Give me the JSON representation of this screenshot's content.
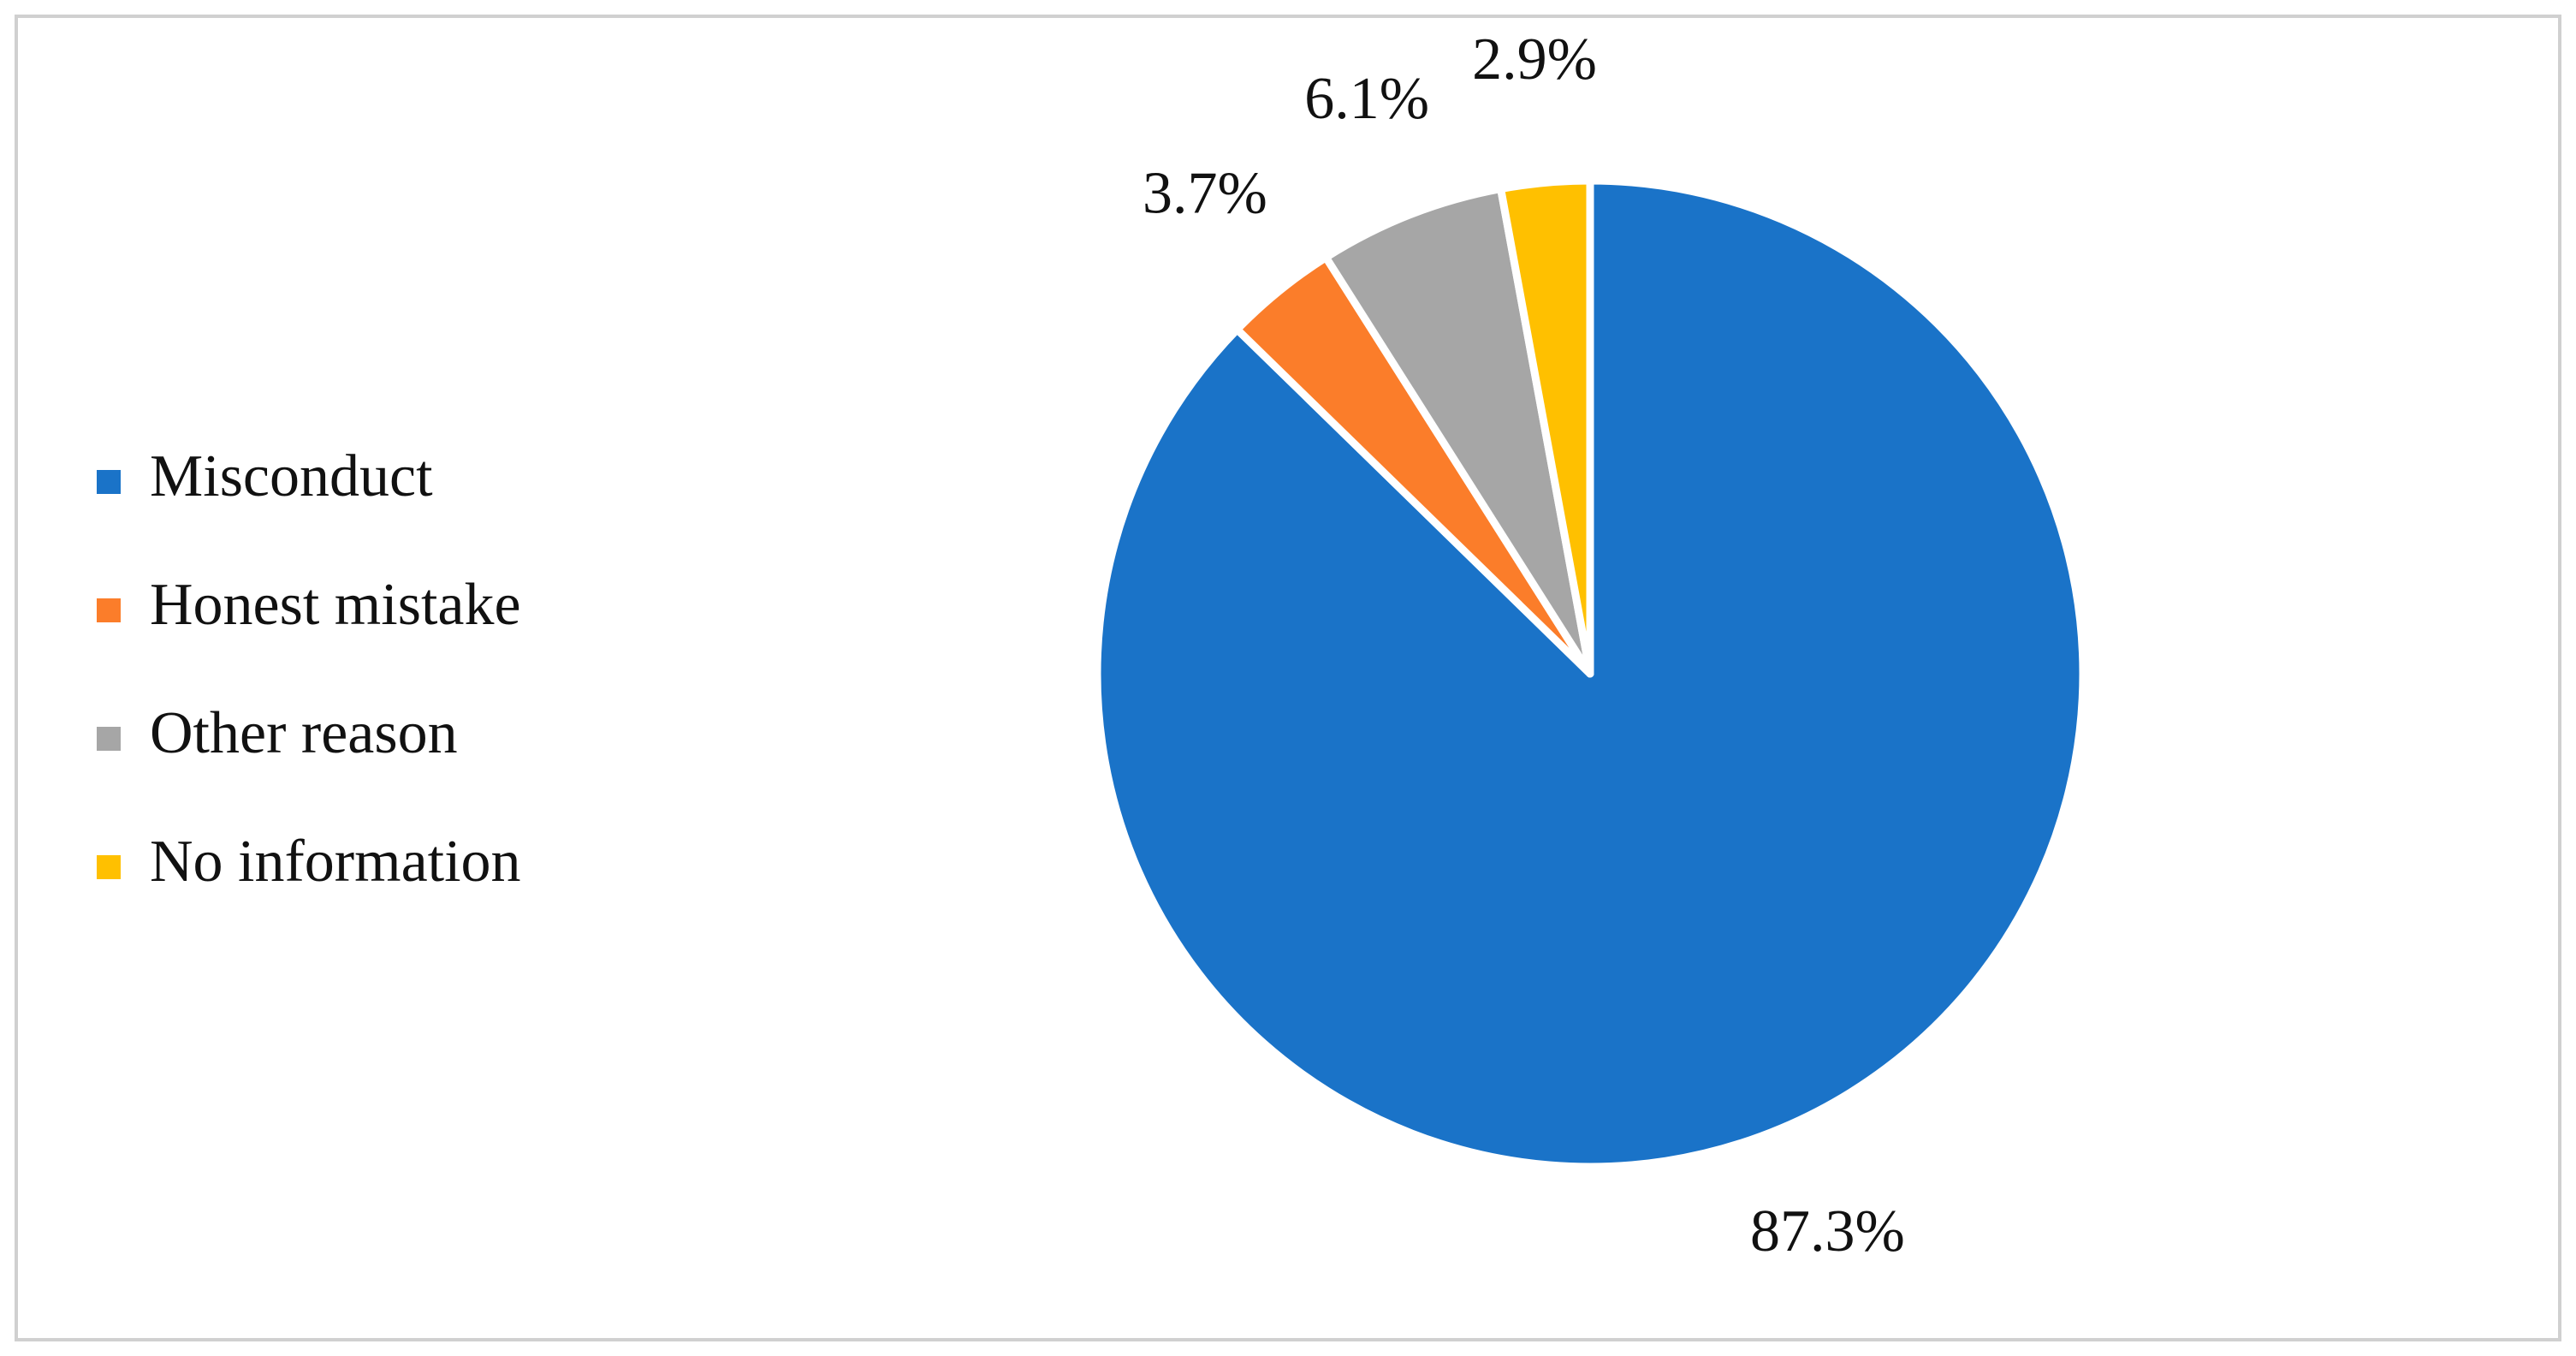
{
  "chart_data": {
    "type": "pie",
    "categories": [
      "Misconduct",
      "Honest mistake",
      "Other reason",
      "No information"
    ],
    "values": [
      87.3,
      3.7,
      6.1,
      2.9
    ],
    "value_labels": [
      "87.3%",
      "3.7%",
      "6.1%",
      "2.9%"
    ],
    "colors": [
      "#1a73c8",
      "#fb7d2a",
      "#a6a6a6",
      "#ffc000"
    ],
    "legend": "left"
  }
}
